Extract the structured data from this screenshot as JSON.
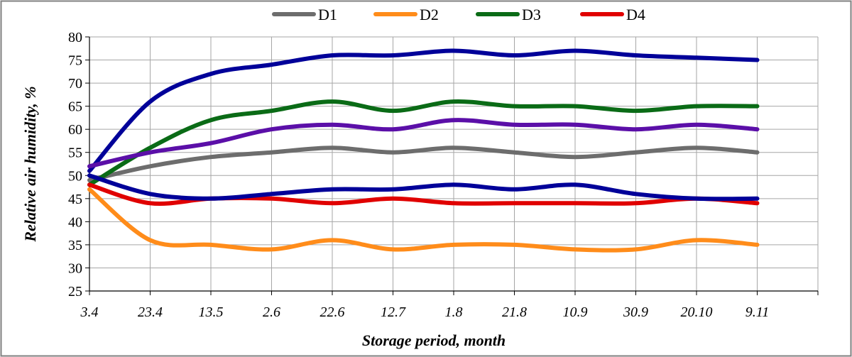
{
  "chart_data": {
    "type": "line",
    "title": "",
    "xlabel": "Storage period, month",
    "ylabel": "Relative air humidity,  %",
    "categories": [
      "3.4",
      "23.4",
      "13.5",
      "2.6",
      "22.6",
      "12.7",
      "1.8",
      "21.8",
      "10.9",
      "30.9",
      "20.10",
      "9.11"
    ],
    "ylim": [
      25,
      80
    ],
    "ytick_step": 5,
    "grid": true,
    "legend_position": "top",
    "series": [
      {
        "name": "D1",
        "color": "#6d6d6d",
        "values": [
          49,
          52,
          54,
          55,
          56,
          55,
          56,
          55,
          54,
          55,
          56,
          55
        ]
      },
      {
        "name": "D2",
        "color": "#ff8c1a",
        "values": [
          47,
          36,
          35,
          34,
          36,
          34,
          35,
          35,
          34,
          34,
          36,
          35
        ]
      },
      {
        "name": "D3",
        "color": "#0a6b16",
        "values": [
          48,
          56,
          62,
          64,
          66,
          64,
          66,
          65,
          65,
          64,
          65,
          65
        ]
      },
      {
        "name": "D4",
        "color": "#e00000",
        "values": [
          48,
          44,
          45,
          45,
          44,
          45,
          44,
          44,
          44,
          44,
          45,
          44
        ]
      },
      {
        "name": "",
        "color": "#000099",
        "values": [
          51,
          66,
          72,
          74,
          76,
          76,
          77,
          76,
          77,
          76,
          75.5,
          75
        ]
      },
      {
        "name": "",
        "color": "#5b0fa8",
        "values": [
          52,
          55,
          57,
          60,
          61,
          60,
          62,
          61,
          61,
          60,
          61,
          60
        ]
      },
      {
        "name": "",
        "color": "#000099",
        "values": [
          50,
          46,
          45,
          46,
          47,
          47,
          48,
          47,
          48,
          46,
          45,
          45
        ]
      }
    ]
  }
}
